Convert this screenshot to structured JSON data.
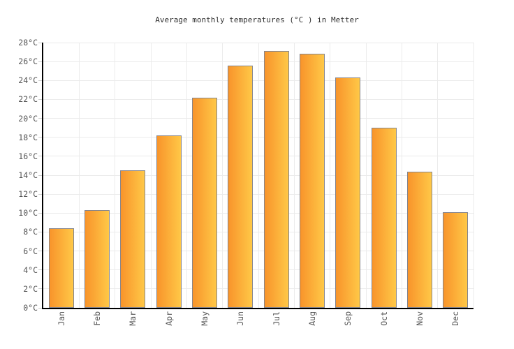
{
  "title": "Average monthly temperatures (°C ) in Metter",
  "chart_data": {
    "type": "bar",
    "title": "Average monthly temperatures (°C ) in Metter",
    "categories": [
      "Jan",
      "Feb",
      "Mar",
      "Apr",
      "May",
      "Jun",
      "Jul",
      "Aug",
      "Sep",
      "Oct",
      "Nov",
      "Dec"
    ],
    "values": [
      8.4,
      10.3,
      14.5,
      18.2,
      22.2,
      25.6,
      27.1,
      26.8,
      24.3,
      19.0,
      14.4,
      10.1
    ],
    "unit": "°C",
    "ylim": [
      0,
      28
    ],
    "ytick_step": 2,
    "ytick_suffix": "°C",
    "xlabel": "",
    "ylabel": "",
    "grid": true,
    "legend": false,
    "x_label_rotation_deg": -90,
    "styles": {
      "background": "#FFFFFF",
      "bar_gradient_start": "#F8942B",
      "bar_gradient_end": "#FFC847",
      "bar_border": "#85858D",
      "gridline": "#EBEBEB",
      "tick": "#CCCCCC",
      "axis": "#000000",
      "label_color": "#555555",
      "title_color": "#333333"
    }
  }
}
